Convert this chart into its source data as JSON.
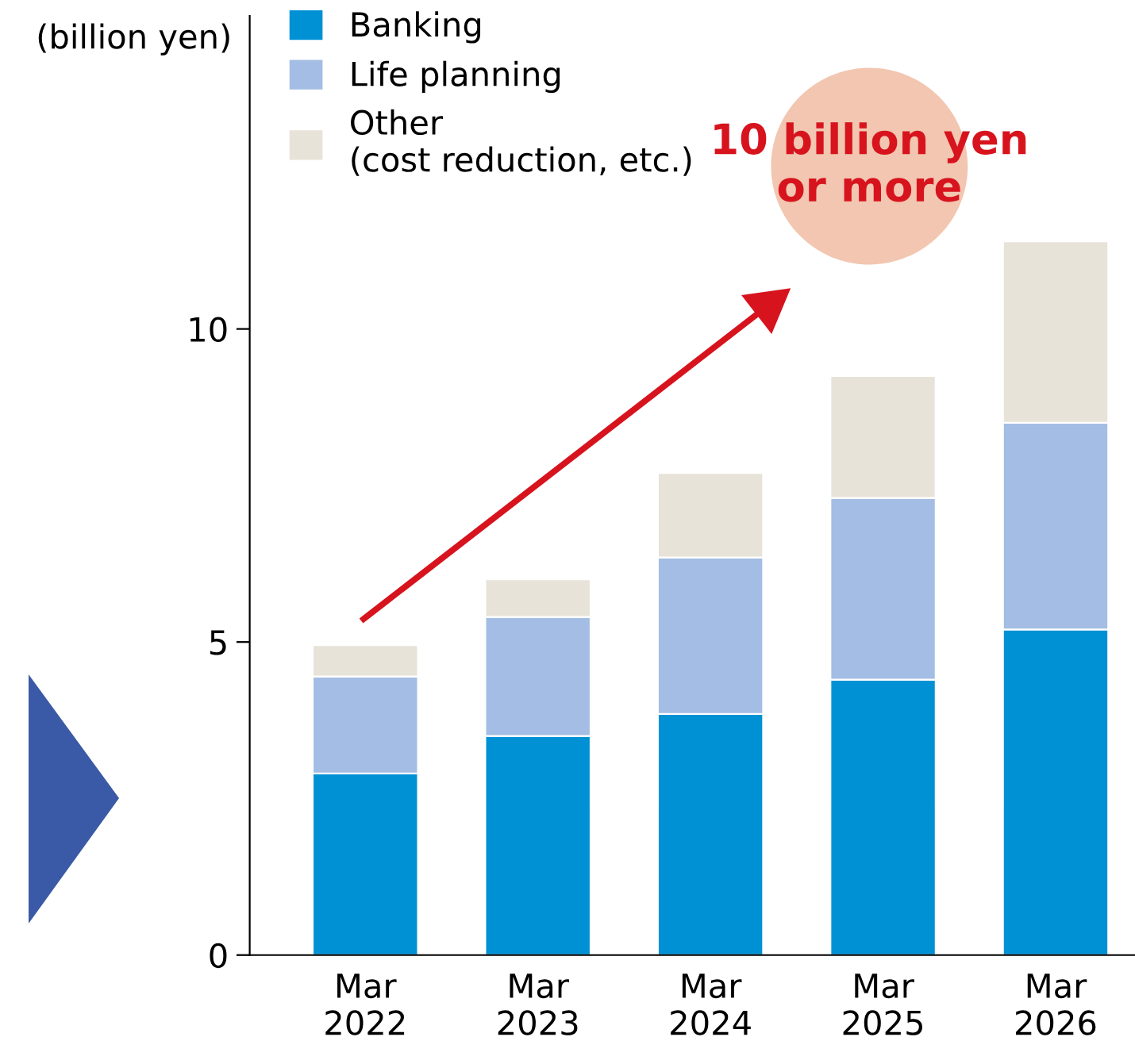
{
  "chart_data": {
    "type": "bar",
    "stacked": true,
    "ylabel": "(billion yen)",
    "categories": [
      "Mar\n2022",
      "Mar\n2023",
      "Mar\n2024",
      "Mar\n2025",
      "Mar\n2026"
    ],
    "series": [
      {
        "name": "Banking",
        "color": "#0091d5",
        "values": [
          2.9,
          3.5,
          3.85,
          4.4,
          5.2
        ]
      },
      {
        "name": "Life planning",
        "color": "#a4bde4",
        "values": [
          1.55,
          1.9,
          2.5,
          2.9,
          3.3
        ]
      },
      {
        "name": "Other\n(cost reduction, etc.)",
        "color": "#e8e3d9",
        "values": [
          0.5,
          0.6,
          1.35,
          1.95,
          2.9
        ]
      }
    ],
    "ylim": [
      0,
      15
    ],
    "yticks": [
      0,
      5,
      10
    ],
    "grid": false,
    "legend": "top left",
    "annotations": [
      "10 billion yen\nor more"
    ]
  }
}
